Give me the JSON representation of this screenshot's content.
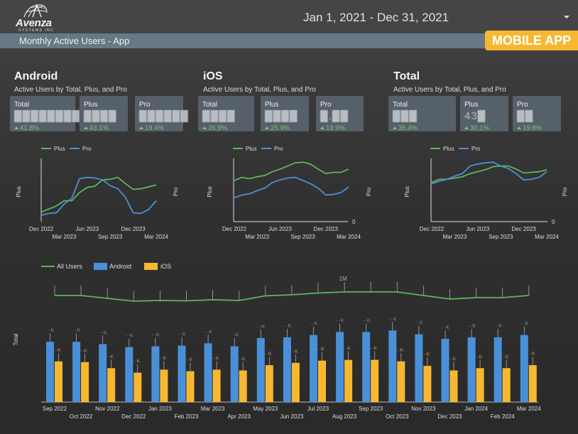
{
  "header": {
    "logo_text": "Avenza",
    "logo_subtext": "SYSTEMS INC",
    "date_range": "Jan 1, 2021 - Dec 31, 2021",
    "page_title": "Monthly Active Users - App",
    "badge": "MOBILE APP"
  },
  "colors": {
    "plus": "#5fb55a",
    "pro": "#4f8fd4",
    "android": "#4a90d9",
    "ios": "#f7b731",
    "all_users": "#5fb55a",
    "positive": "#7cc576"
  },
  "sections": [
    {
      "title": "Android",
      "subtitle": "Active Users by Total, Plus, and Pro",
      "cards": [
        {
          "label": "Total",
          "value": "█████████",
          "change": "41.8%"
        },
        {
          "label": "Plus",
          "value": "████",
          "change": "43.1%"
        },
        {
          "label": "Pro",
          "value": "██████",
          "change": "19.4%"
        }
      ]
    },
    {
      "title": "iOS",
      "subtitle": "Active Users by Total, Plus, and Pro",
      "cards": [
        {
          "label": "Total",
          "value": "████",
          "change": "26.9%"
        },
        {
          "label": "Plus",
          "value": "████",
          "change": "25.9%"
        },
        {
          "label": "Pro",
          "value": "█.██",
          "change": "19.9%"
        }
      ]
    },
    {
      "title": "Total",
      "subtitle": "Active Users by Total, Plus, and Pro",
      "cards": [
        {
          "label": "Total",
          "value": "███",
          "change": "35.4%"
        },
        {
          "label": "Plus",
          "value": "43█",
          "change": "30.1%"
        },
        {
          "label": "Pro",
          "value": "██",
          "change": "19.8%"
        }
      ]
    }
  ],
  "chart_data": [
    {
      "type": "line",
      "title": "Android",
      "legend": [
        "Plus",
        "Pro"
      ],
      "legend_position": "top",
      "ylabel_left": "Plus",
      "ylabel_right": "Pro",
      "x": [
        "Dec 2022",
        "Jan 2023",
        "Feb 2023",
        "Mar 2023",
        "Apr 2023",
        "May 2023",
        "Jun 2023",
        "Jul 2023",
        "Aug 2023",
        "Sep 2023",
        "Oct 2023",
        "Nov 2023",
        "Dec 2023",
        "Jan 2024",
        "Feb 2024",
        "Mar 2024"
      ],
      "x_ticks_row1": [
        "Dec 2022",
        "Jun 2023",
        "Dec 2023"
      ],
      "x_ticks_row2": [
        "Mar 2023",
        "Sep 2023",
        "Mar 2024"
      ],
      "y_zero_label": "",
      "series": [
        {
          "name": "Plus",
          "values": [
            0.15,
            0.2,
            0.25,
            0.33,
            0.33,
            0.46,
            0.54,
            0.56,
            0.66,
            0.67,
            0.7,
            0.6,
            0.51,
            0.52,
            0.55,
            0.58
          ]
        },
        {
          "name": "Pro",
          "values": [
            0.1,
            0.13,
            0.14,
            0.28,
            0.37,
            0.68,
            0.7,
            0.69,
            0.66,
            0.57,
            0.52,
            0.38,
            0.14,
            0.13,
            0.19,
            0.33
          ]
        }
      ]
    },
    {
      "type": "line",
      "title": "iOS",
      "legend": [
        "Plus",
        "Pro"
      ],
      "legend_position": "top",
      "ylabel_left": "Plus",
      "ylabel_right": "Pro",
      "x": [
        "Dec 2022",
        "Jan 2023",
        "Feb 2023",
        "Mar 2023",
        "Apr 2023",
        "May 2023",
        "Jun 2023",
        "Jul 2023",
        "Aug 2023",
        "Sep 2023",
        "Oct 2023",
        "Nov 2023",
        "Dec 2023",
        "Jan 2024",
        "Feb 2024",
        "Mar 2024"
      ],
      "x_ticks_row1": [
        "Dec 2022",
        "Jun 2023",
        "Dec 2023"
      ],
      "x_ticks_row2": [
        "Mar 2023",
        "Sep 2023",
        "Mar 2024"
      ],
      "y_zero_label": "0",
      "series": [
        {
          "name": "Plus",
          "values": [
            0.65,
            0.7,
            0.68,
            0.71,
            0.73,
            0.79,
            0.83,
            0.88,
            0.93,
            0.94,
            0.91,
            0.83,
            0.76,
            0.78,
            0.78,
            0.83
          ]
        },
        {
          "name": "Pro",
          "values": [
            0.38,
            0.42,
            0.44,
            0.49,
            0.53,
            0.62,
            0.66,
            0.69,
            0.7,
            0.65,
            0.6,
            0.53,
            0.42,
            0.43,
            0.46,
            0.55
          ]
        }
      ]
    },
    {
      "type": "line",
      "title": "Total",
      "legend": [
        "Plus",
        "Pro"
      ],
      "legend_position": "top",
      "ylabel_left": "Plus",
      "ylabel_right": "Pro",
      "x": [
        "Dec 2022",
        "Jan 2023",
        "Feb 2023",
        "Mar 2023",
        "Apr 2023",
        "May 2023",
        "Jun 2023",
        "Jul 2023",
        "Aug 2023",
        "Sep 2023",
        "Oct 2023",
        "Nov 2023",
        "Dec 2023",
        "Jan 2024",
        "Feb 2024",
        "Mar 2024"
      ],
      "x_ticks_row1": [
        "Dec 2022",
        "Jun 2023",
        "Dec 2023"
      ],
      "x_ticks_row2": [
        "Mar 2023",
        "Sep 2023",
        "Mar 2024"
      ],
      "y_zero_label": "0",
      "series": [
        {
          "name": "Plus",
          "values": [
            0.62,
            0.67,
            0.67,
            0.69,
            0.71,
            0.76,
            0.79,
            0.82,
            0.87,
            0.88,
            0.88,
            0.83,
            0.77,
            0.78,
            0.79,
            0.82
          ]
        },
        {
          "name": "Pro",
          "values": [
            0.6,
            0.64,
            0.67,
            0.72,
            0.76,
            0.88,
            0.91,
            0.93,
            0.94,
            0.88,
            0.84,
            0.76,
            0.66,
            0.67,
            0.7,
            0.79
          ]
        }
      ]
    },
    {
      "type": "bar",
      "title": "Monthly Active Users by Platform",
      "legend": [
        "All Users",
        "Android",
        "iOS"
      ],
      "legend_position": "top-left",
      "ylabel": "Total",
      "categories": [
        "Sep 2022",
        "Oct 2022",
        "Nov 2022",
        "Dec 2022",
        "Jan 2023",
        "Feb 2023",
        "Mar 2023",
        "Apr 2023",
        "May 2023",
        "Jun 2023",
        "Jul 2023",
        "Aug 2023",
        "Sep 2023",
        "Oct 2023",
        "Nov 2023",
        "Dec 2023",
        "Jan 2024",
        "Feb 2024",
        "Mar 2024"
      ],
      "x_ticks_row1": [
        "Sep 2022",
        "Nov 2022",
        "Jan 2023",
        "Mar 2023",
        "May 2023",
        "Jul 2023",
        "Sep 2023",
        "Nov 2023",
        "Jan 2024",
        "Mar 2024"
      ],
      "x_ticks_row2": [
        "Oct 2022",
        "Dec 2022",
        "Feb 2023",
        "Apr 2023",
        "Jun 2023",
        "Aug 2023",
        "Oct 2023",
        "Dec 2023",
        "Feb 2024"
      ],
      "series": [
        {
          "name": "Android",
          "type": "bar",
          "values": [
            0.8,
            0.8,
            0.77,
            0.73,
            0.74,
            0.75,
            0.78,
            0.74,
            0.85,
            0.86,
            0.89,
            0.93,
            0.93,
            0.95,
            0.9,
            0.84,
            0.86,
            0.86,
            0.89
          ]
        },
        {
          "name": "iOS",
          "type": "bar",
          "values": [
            0.54,
            0.53,
            0.45,
            0.39,
            0.43,
            0.41,
            0.43,
            0.42,
            0.49,
            0.52,
            0.55,
            0.56,
            0.56,
            0.54,
            0.48,
            0.42,
            0.45,
            0.45,
            0.49
          ]
        },
        {
          "name": "All Users",
          "type": "line",
          "values": [
            0.78,
            0.78,
            0.7,
            0.62,
            0.64,
            0.63,
            0.66,
            0.64,
            0.77,
            0.8,
            0.85,
            0.88,
            0.88,
            0.88,
            0.78,
            0.68,
            0.72,
            0.72,
            0.78
          ]
        }
      ],
      "annotations": [
        "1M"
      ],
      "value_labels_obscured": true
    }
  ]
}
